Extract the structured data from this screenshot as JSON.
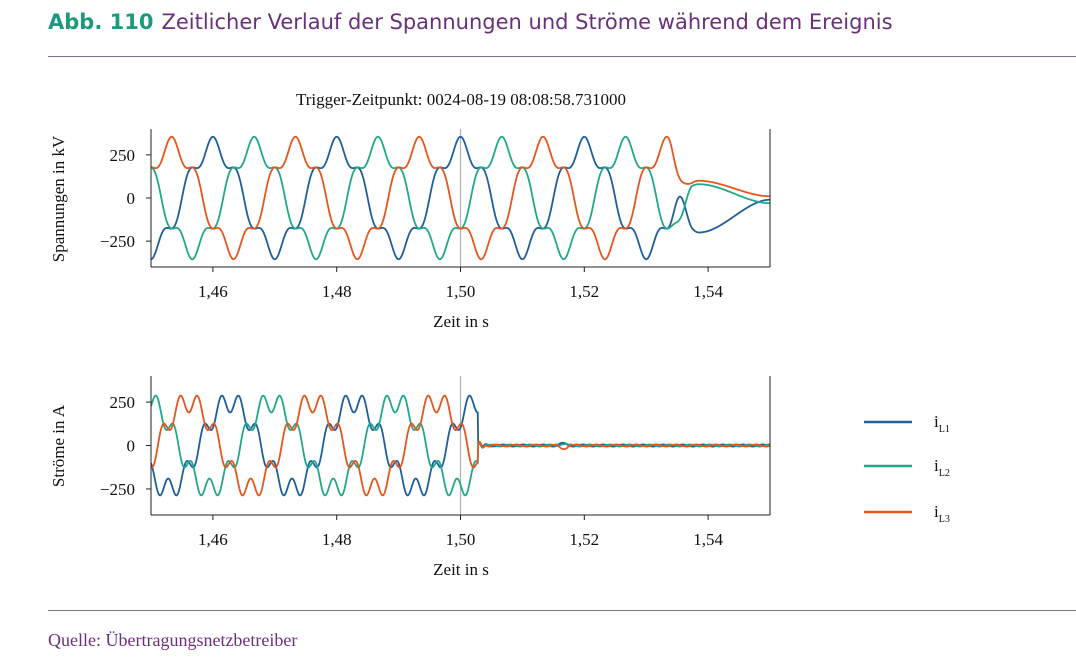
{
  "figure": {
    "number": "Abb. 110",
    "title": "Zeitlicher Verlauf der Spannungen und Ströme während dem Ereignis",
    "source": "Quelle: Übertragungsnetzbetreiber"
  },
  "colors": {
    "L1": "#1f5f9b",
    "L2": "#21a88a",
    "L3": "#e4571e",
    "accent": "#1a9a7f",
    "title": "#6b2f7d",
    "trigger_line": "#b0b0b0"
  },
  "chart_data": [
    {
      "type": "line",
      "title": "Trigger-Zeitpunkt: 0024-08-19 08:08:58.731000",
      "xlabel": "Zeit in s",
      "ylabel": "Spannungen in kV",
      "xlim": [
        1.45,
        1.55
      ],
      "ylim": [
        -400,
        400
      ],
      "xticks": [
        1.46,
        1.48,
        1.5,
        1.52,
        1.54
      ],
      "xtick_labels": [
        "1,46",
        "1,48",
        "1,50",
        "1,52",
        "1,54"
      ],
      "yticks": [
        250,
        0,
        -250
      ],
      "ytick_labels": [
        "250",
        "0",
        "−250"
      ],
      "trigger_time": 1.5,
      "series": [
        {
          "name": "L1",
          "amplitude": 300,
          "phase_deg": 90,
          "harmonic_amplitude": 55,
          "fault_start": 1.5335,
          "after_fault": "decay_to_-200_then_rise_to_-10"
        },
        {
          "name": "L2",
          "amplitude": 300,
          "phase_deg": -30,
          "harmonic_amplitude": 55,
          "fault_start": 1.5335,
          "after_fault": "decay_to_80_then_to_-30"
        },
        {
          "name": "L3",
          "amplitude": 300,
          "phase_deg": 210,
          "harmonic_amplitude": 55,
          "fault_start": 1.5335,
          "after_fault": "decay_to_100_then_to_10"
        }
      ]
    },
    {
      "type": "line",
      "title": "",
      "xlabel": "Zeit in s",
      "ylabel": "Ströme in A",
      "xlim": [
        1.45,
        1.55
      ],
      "ylim": [
        -400,
        400
      ],
      "xticks": [
        1.46,
        1.48,
        1.5,
        1.52,
        1.54
      ],
      "xtick_labels": [
        "1,46",
        "1,48",
        "1,50",
        "1,52",
        "1,54"
      ],
      "yticks": [
        250,
        0,
        -250
      ],
      "ytick_labels": [
        "250",
        "0",
        "−250"
      ],
      "trigger_time": 1.5,
      "series": [
        {
          "name": "L1",
          "amplitude": 250,
          "phase_deg": 40,
          "harmonic_amplitude": 60,
          "trip_time": 1.5028,
          "after_trip": 0
        },
        {
          "name": "L2",
          "amplitude": 250,
          "phase_deg": -80,
          "harmonic_amplitude": 60,
          "trip_time": 1.5028,
          "after_trip": 0
        },
        {
          "name": "L3",
          "amplitude": 250,
          "phase_deg": 160,
          "harmonic_amplitude": 60,
          "trip_time": 1.5028,
          "after_trip": 0
        }
      ]
    }
  ],
  "legend": {
    "placement": "right",
    "items": [
      {
        "base": "i",
        "sub": "L1",
        "color": "#1f5f9b"
      },
      {
        "base": "i",
        "sub": "L2",
        "color": "#21a88a"
      },
      {
        "base": "i",
        "sub": "L3",
        "color": "#e4571e"
      }
    ]
  }
}
